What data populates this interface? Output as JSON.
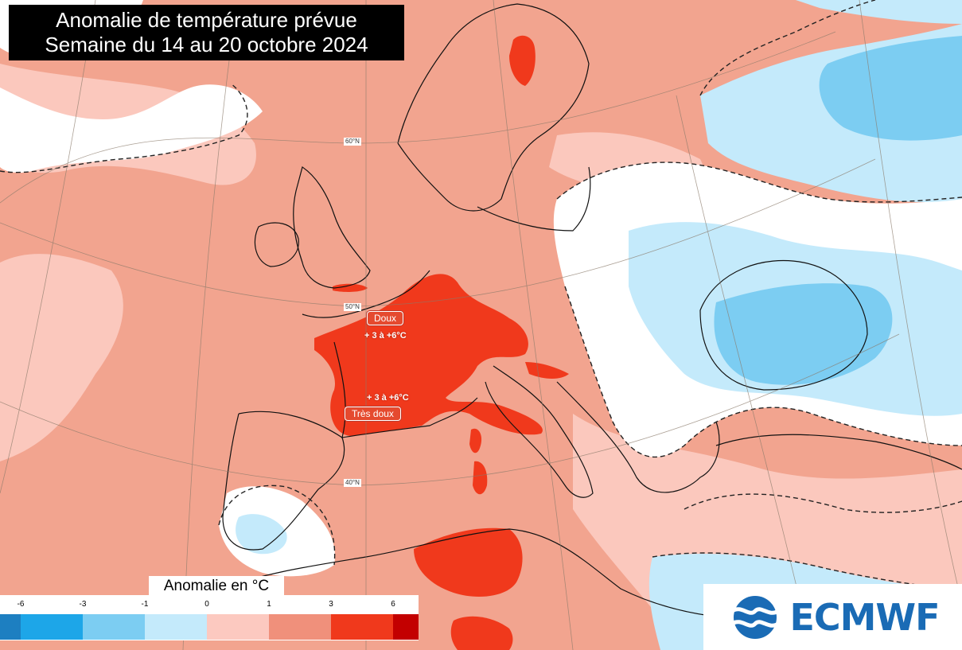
{
  "title": {
    "line1": "Anomalie de température prévue",
    "line2": "Semaine du 14 au 20 octobre 2024"
  },
  "latitude_labels": [
    "60°N",
    "50°N",
    "40°N"
  ],
  "annotations": [
    {
      "badge": "Doux",
      "range": "+ 3 à +6°C"
    },
    {
      "badge": "Très doux",
      "range": "+ 3 à +6°C"
    }
  ],
  "legend": {
    "title": "Anomalie en °C",
    "tick_labels": [
      "-6",
      "-3",
      "-1",
      "0",
      "1",
      "3",
      "6"
    ],
    "colors": [
      "#1d7fc1",
      "#1da6e8",
      "#7ccdf2",
      "#c4eafb",
      "#fcc9c0",
      "#f0907b",
      "#f0391c",
      "#c30000"
    ]
  },
  "logo": {
    "name": "ECMWF",
    "color": "#1a6bb5"
  },
  "palette": {
    "ocean_anomaly": "#f2a48f",
    "light_warm": "#fbc8bd",
    "neutral": "#ffffff",
    "cold_light": "#c4eafb",
    "cold_mid": "#7ccdf2",
    "warm_strong": "#f0391c"
  }
}
